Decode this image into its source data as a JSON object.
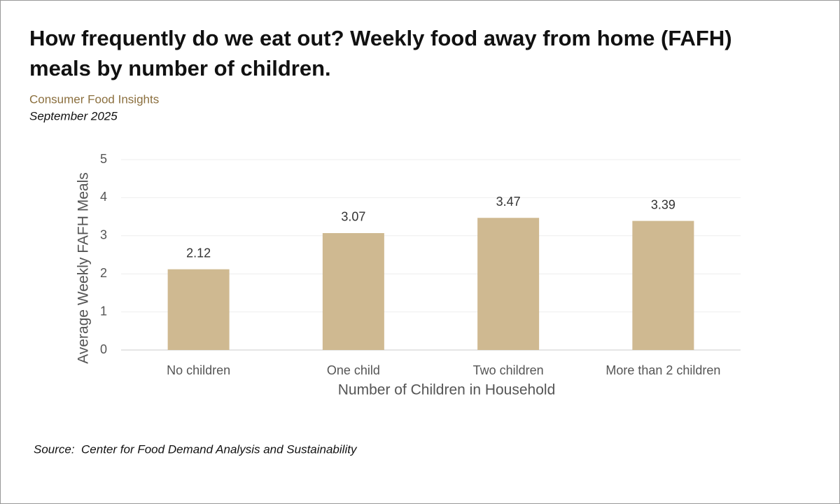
{
  "chart_data": {
    "type": "bar",
    "title_lines": [
      "How frequently do we eat out? Weekly food away from home (FAFH)",
      "meals by number of children."
    ],
    "subtitle": "Consumer Food Insights",
    "date": "September 2025",
    "x_label": "Number of Children in Household",
    "y_label": "Average Weekly FAFH Meals",
    "categories": [
      "No children",
      "One child",
      "Two children",
      "More than 2 children"
    ],
    "values": [
      2.12,
      3.07,
      3.47,
      3.39
    ],
    "color": "#cfb991",
    "ylim": [
      0,
      5
    ],
    "yticks": [
      0,
      1,
      2,
      3,
      4,
      5
    ],
    "grid": true,
    "source": "Source:  Center for Food Demand Analysis and Sustainability"
  }
}
